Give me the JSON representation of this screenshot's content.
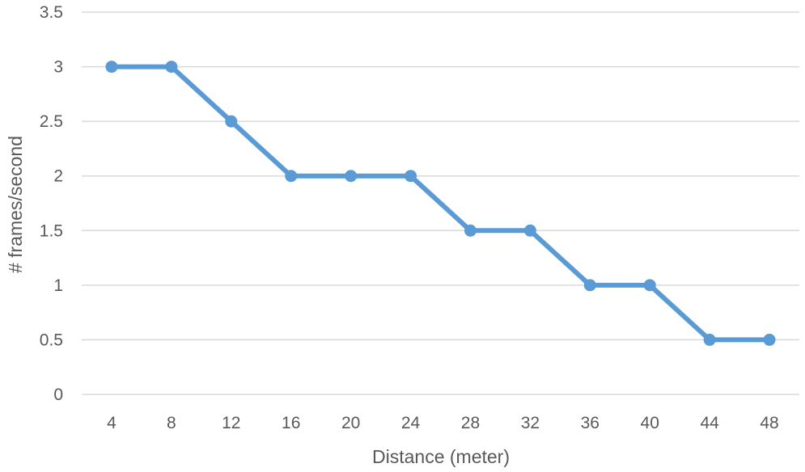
{
  "chart_data": {
    "type": "line",
    "categories": [
      "4",
      "8",
      "12",
      "16",
      "20",
      "24",
      "28",
      "32",
      "36",
      "40",
      "44",
      "48"
    ],
    "series": [
      {
        "values": [
          3,
          3,
          2.5,
          2,
          2,
          2,
          1.5,
          1.5,
          1,
          1,
          0.5,
          0.5
        ]
      }
    ],
    "xlabel": "Distance (meter)",
    "ylabel": "# frames/second",
    "ylim": [
      0,
      3.5
    ],
    "yticks": [
      "0",
      "0.5",
      "1",
      "1.5",
      "2",
      "2.5",
      "3",
      "3.5"
    ],
    "grid": true,
    "legend": "none",
    "colors": {
      "series": "#5b9bd5",
      "grid": "#d9d9d9",
      "text": "#595959"
    }
  }
}
